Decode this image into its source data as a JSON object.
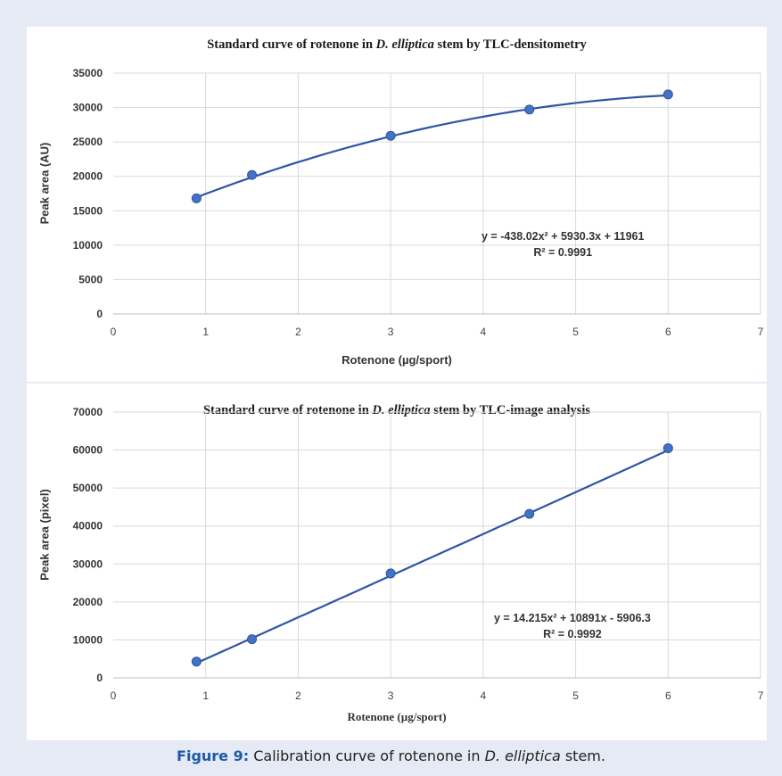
{
  "chart_data": [
    {
      "type": "scatter",
      "title_prefix": "Standard curve of rotenone in ",
      "title_italic": "D. elliptica",
      "title_suffix": " stem by TLC-densitometry",
      "xlabel": "Rotenone (µg/sport)",
      "ylabel": "Peak area (AU)",
      "xlim": [
        0,
        7
      ],
      "ylim": [
        0,
        35000
      ],
      "xticks": [
        "0",
        "1",
        "2",
        "3",
        "4",
        "5",
        "6",
        "7"
      ],
      "yticks": [
        "0",
        "5000",
        "10000",
        "15000",
        "20000",
        "25000",
        "30000",
        "35000"
      ],
      "grid": true,
      "legend": "none",
      "series": [
        {
          "x": [
            0.9,
            1.5,
            3,
            4.5,
            6
          ],
          "y": [
            16800,
            20200,
            25900,
            29700,
            31900
          ]
        }
      ],
      "trendline": {
        "kind": "polynomial",
        "a": -438.02,
        "b": 5930.3,
        "c": 11961
      },
      "equation": "y = -438.02x² + 5930.3x + 11961",
      "r2": "R² = 0.9991",
      "color": "#2f55a4",
      "marker_color": "#4472c4"
    },
    {
      "type": "scatter",
      "title_prefix": "Standard curve of rotenone in ",
      "title_italic": "D. elliptica",
      "title_suffix": " stem by TLC-image analysis",
      "xlabel": "Rotenone (µg/sport)",
      "ylabel": "Peak area (pixel)",
      "xlim": [
        0,
        7
      ],
      "ylim": [
        0,
        70000
      ],
      "xticks": [
        "0",
        "1",
        "2",
        "3",
        "4",
        "5",
        "6",
        "7"
      ],
      "yticks": [
        "0",
        "10000",
        "20000",
        "30000",
        "40000",
        "50000",
        "60000",
        "70000"
      ],
      "grid": true,
      "legend": "none",
      "series": [
        {
          "x": [
            0.9,
            1.5,
            3,
            4.5,
            6
          ],
          "y": [
            4300,
            10200,
            27500,
            43200,
            60500
          ]
        }
      ],
      "trendline": {
        "kind": "polynomial",
        "a": 14.215,
        "b": 10891,
        "c": -5906.3
      },
      "equation": "y = 14.215x² + 10891x - 5906.3",
      "r2": "R² = 0.9992",
      "color": "#2f55a4",
      "marker_color": "#4472c4"
    }
  ],
  "caption": {
    "label": "Figure 9:",
    "text_prefix": " Calibration curve of rotenone in ",
    "text_italic": "D. elliptica",
    "text_suffix": " stem."
  }
}
